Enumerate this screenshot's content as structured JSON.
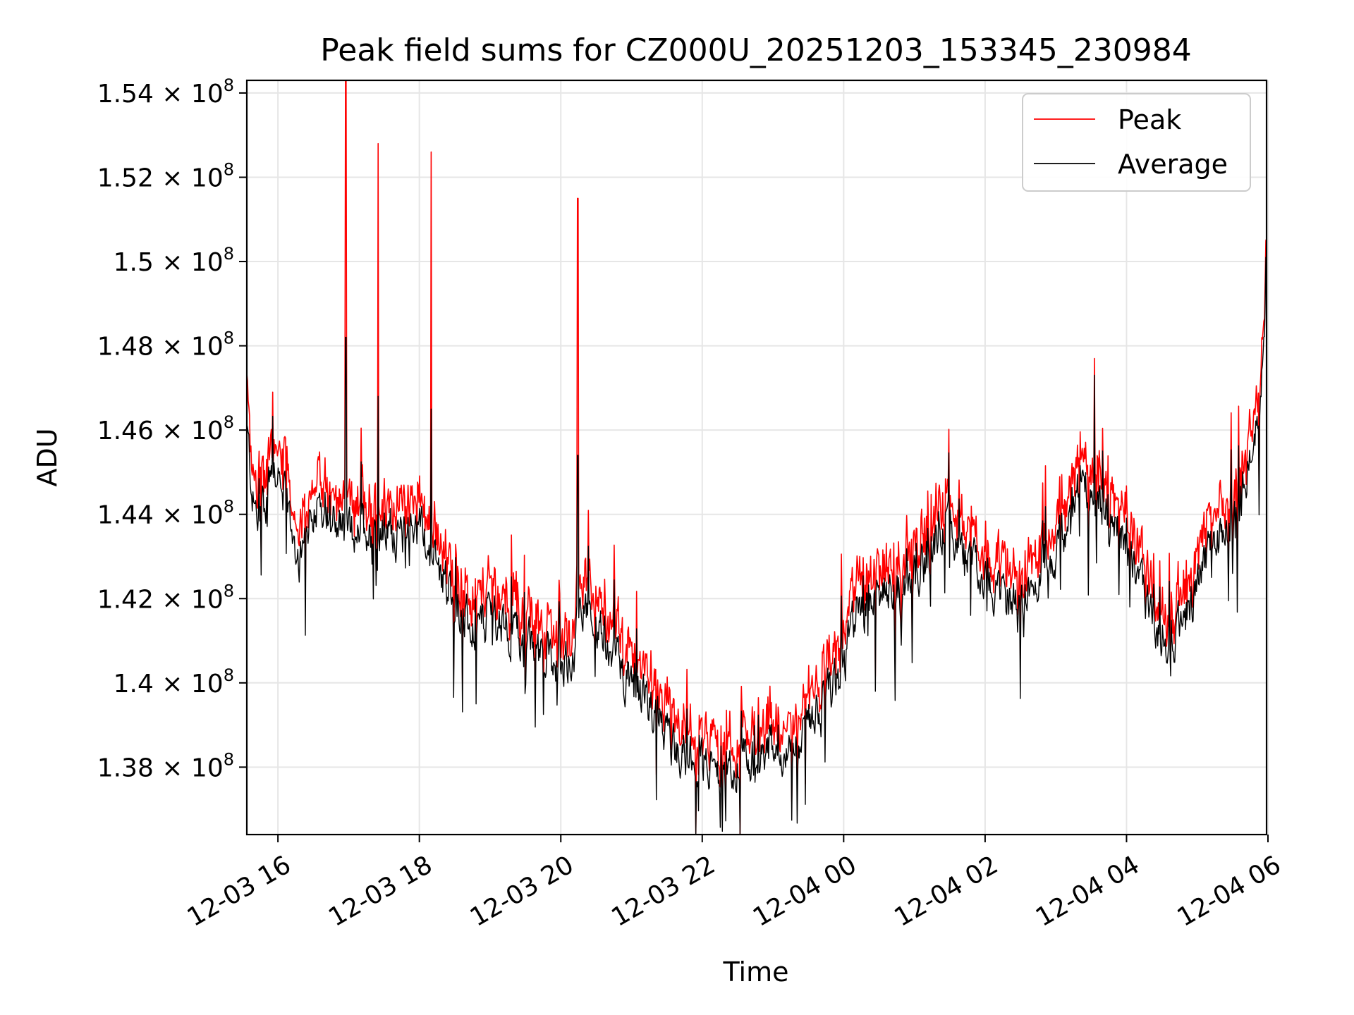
{
  "chart_data": {
    "type": "line",
    "title": "Peak field sums for CZ000U_20251203_153345_230984",
    "xlabel": "Time",
    "ylabel": "ADU",
    "x_range_hours": [
      15.56,
      29.98
    ],
    "ylim": [
      136400000,
      154300000
    ],
    "grid": true,
    "legend_placement": "top-right",
    "x_ticks": [
      {
        "hour": 16,
        "label": "12-03 16"
      },
      {
        "hour": 18,
        "label": "12-03 18"
      },
      {
        "hour": 20,
        "label": "12-03 20"
      },
      {
        "hour": 22,
        "label": "12-03 22"
      },
      {
        "hour": 24,
        "label": "12-04 00"
      },
      {
        "hour": 26,
        "label": "12-04 02"
      },
      {
        "hour": 28,
        "label": "12-04 04"
      },
      {
        "hour": 30,
        "label": "12-04 06"
      }
    ],
    "y_ticks": [
      {
        "value": 138000000,
        "mantissa": "1.38",
        "exp": "8"
      },
      {
        "value": 140000000,
        "mantissa": "1.4",
        "exp": "8"
      },
      {
        "value": 142000000,
        "mantissa": "1.42",
        "exp": "8"
      },
      {
        "value": 144000000,
        "mantissa": "1.44",
        "exp": "8"
      },
      {
        "value": 146000000,
        "mantissa": "1.46",
        "exp": "8"
      },
      {
        "value": 148000000,
        "mantissa": "1.48",
        "exp": "8"
      },
      {
        "value": 150000000,
        "mantissa": "1.5",
        "exp": "8"
      },
      {
        "value": 152000000,
        "mantissa": "1.52",
        "exp": "8"
      },
      {
        "value": 154000000,
        "mantissa": "1.54",
        "exp": "8"
      }
    ],
    "tick_times": "× 10",
    "series": [
      {
        "name": "Peak",
        "color": "#ff0000",
        "note": "approximate trend points (hours since 12-03 00:00, ADU)",
        "x": [
          15.56,
          15.65,
          15.75,
          15.9,
          16.0,
          16.1,
          16.2,
          16.3,
          16.45,
          16.6,
          16.75,
          16.9,
          17.0,
          17.2,
          17.4,
          17.6,
          17.8,
          18.0,
          18.2,
          18.4,
          18.6,
          18.8,
          19.0,
          19.2,
          19.4,
          19.6,
          19.8,
          20.0,
          20.2,
          20.25,
          20.4,
          20.6,
          20.8,
          21.0,
          21.2,
          21.4,
          21.6,
          21.8,
          22.0,
          22.2,
          22.4,
          22.6,
          22.8,
          23.0,
          23.2,
          23.4,
          23.6,
          23.8,
          24.0,
          24.2,
          24.4,
          24.6,
          24.8,
          25.0,
          25.2,
          25.4,
          25.6,
          25.8,
          26.0,
          26.2,
          26.4,
          26.6,
          26.8,
          27.0,
          27.2,
          27.4,
          27.6,
          27.8,
          28.0,
          28.2,
          28.4,
          28.6,
          28.8,
          29.0,
          29.2,
          29.4,
          29.6,
          29.8,
          29.9,
          29.98
        ],
        "y": [
          146500000,
          144800000,
          144000000,
          145300000,
          145500000,
          144800000,
          143800000,
          143300000,
          144200000,
          144800000,
          144300000,
          144000000,
          143800000,
          144100000,
          143700000,
          144000000,
          143700000,
          144100000,
          143200000,
          142700000,
          142000000,
          141500000,
          142000000,
          141800000,
          141400000,
          141100000,
          140900000,
          140600000,
          141300000,
          142500000,
          141900000,
          141300000,
          140900000,
          140200000,
          139800000,
          139400000,
          138700000,
          138600000,
          138400000,
          138300000,
          138100000,
          138400000,
          138800000,
          138700000,
          138400000,
          138900000,
          139600000,
          140100000,
          140600000,
          142300000,
          142100000,
          142500000,
          142400000,
          142900000,
          143300000,
          143900000,
          143800000,
          143300000,
          142900000,
          142400000,
          142300000,
          142600000,
          143100000,
          143400000,
          144300000,
          145100000,
          144700000,
          144100000,
          143600000,
          142500000,
          141600000,
          141400000,
          141800000,
          142600000,
          143600000,
          143800000,
          144400000,
          146300000,
          147300000,
          149800000
        ],
        "spikes": [
          {
            "x": 16.96,
            "y": 154300000
          },
          {
            "x": 17.42,
            "y": 152800000
          },
          {
            "x": 18.17,
            "y": 152600000
          },
          {
            "x": 20.24,
            "y": 151500000
          },
          {
            "x": 27.55,
            "y": 147700000
          },
          {
            "x": 29.97,
            "y": 150500000
          }
        ]
      },
      {
        "name": "Average",
        "color": "#000000",
        "note": "approximate trend points (hours since 12-03 00:00, ADU)",
        "x": [
          15.56,
          15.65,
          15.75,
          15.9,
          16.0,
          16.1,
          16.2,
          16.3,
          16.45,
          16.6,
          16.75,
          16.9,
          17.0,
          17.2,
          17.4,
          17.6,
          17.8,
          18.0,
          18.2,
          18.4,
          18.6,
          18.8,
          19.0,
          19.2,
          19.4,
          19.6,
          19.8,
          20.0,
          20.2,
          20.25,
          20.4,
          20.6,
          20.8,
          21.0,
          21.2,
          21.4,
          21.6,
          21.8,
          22.0,
          22.2,
          22.4,
          22.6,
          22.8,
          23.0,
          23.2,
          23.4,
          23.6,
          23.8,
          24.0,
          24.2,
          24.4,
          24.6,
          24.8,
          25.0,
          25.2,
          25.4,
          25.6,
          25.8,
          26.0,
          26.2,
          26.4,
          26.6,
          26.8,
          27.0,
          27.2,
          27.4,
          27.6,
          27.8,
          28.0,
          28.2,
          28.4,
          28.6,
          28.8,
          29.0,
          29.2,
          29.4,
          29.6,
          29.8,
          29.9,
          29.98
        ],
        "y": [
          146000000,
          144300000,
          143700000,
          145000000,
          145200000,
          144400000,
          143500000,
          143000000,
          143900000,
          144500000,
          144000000,
          143700000,
          143500000,
          143800000,
          143400000,
          143700000,
          143400000,
          143800000,
          142900000,
          142400000,
          141700000,
          141200000,
          141700000,
          141500000,
          141100000,
          140800000,
          140600000,
          140300000,
          141000000,
          142100000,
          141600000,
          141000000,
          140600000,
          139900000,
          139500000,
          139100000,
          138400000,
          138300000,
          138100000,
          138000000,
          137800000,
          138100000,
          138500000,
          138400000,
          138100000,
          138600000,
          139300000,
          139800000,
          140300000,
          142000000,
          141800000,
          142200000,
          142100000,
          142600000,
          143000000,
          143600000,
          143500000,
          143000000,
          142600000,
          142100000,
          142000000,
          142300000,
          142800000,
          143100000,
          144000000,
          144800000,
          144400000,
          143800000,
          143300000,
          142200000,
          141300000,
          141100000,
          141500000,
          142300000,
          143300000,
          143500000,
          144100000,
          146000000,
          147000000,
          149500000
        ],
        "spikes": [
          {
            "x": 16.96,
            "y": 148200000
          },
          {
            "x": 17.42,
            "y": 146800000
          },
          {
            "x": 18.17,
            "y": 146500000
          },
          {
            "x": 20.24,
            "y": 145400000
          },
          {
            "x": 27.55,
            "y": 147300000
          },
          {
            "x": 29.97,
            "y": 150100000
          }
        ]
      }
    ]
  }
}
